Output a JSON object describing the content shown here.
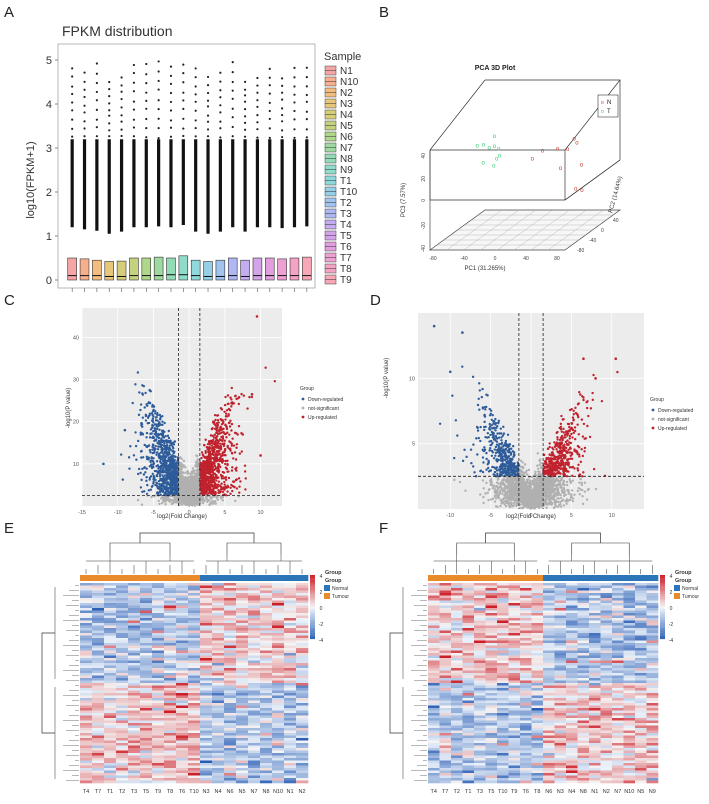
{
  "panels": {
    "A": "A",
    "B": "B",
    "C": "C",
    "D": "D",
    "E": "E",
    "F": "F"
  },
  "chart_data": [
    {
      "id": "A",
      "type": "box",
      "title": "FPKM distribution",
      "ylabel": "log10(FPKM+1)",
      "xlabel": "",
      "ylim": [
        0,
        5.4
      ],
      "yticks": [
        "0",
        "1",
        "2",
        "3",
        "4",
        "5"
      ],
      "legend_title": "Sample",
      "categories": [
        "N1",
        "N10",
        "N2",
        "N3",
        "N4",
        "N5",
        "N6",
        "N7",
        "N8",
        "N9",
        "T1",
        "T10",
        "T2",
        "T3",
        "T4",
        "T5",
        "T6",
        "T7",
        "T8",
        "T9"
      ],
      "series_colors": [
        "#f4a6a6",
        "#f6b08e",
        "#f2bd7f",
        "#e8c67a",
        "#d6cd7a",
        "#c4d27f",
        "#aed78c",
        "#9dd9a0",
        "#93dbb6",
        "#8fdccb",
        "#8fd8dc",
        "#94cfe6",
        "#a0c4ee",
        "#b0b8f1",
        "#c3acf0",
        "#d4a3ea",
        "#e39ee0",
        "#eea0d2",
        "#f4a3c3",
        "#f7a7b5"
      ],
      "medians": [
        0.1,
        0.1,
        0.1,
        0.08,
        0.08,
        0.1,
        0.1,
        0.1,
        0.12,
        0.12,
        0.1,
        0.08,
        0.08,
        0.1,
        0.08,
        0.1,
        0.1,
        0.1,
        0.1,
        0.1
      ],
      "q1": [
        0,
        0,
        0,
        0,
        0,
        0,
        0,
        0,
        0,
        0,
        0,
        0,
        0,
        0,
        0,
        0,
        0,
        0,
        0,
        0
      ],
      "q3": [
        0.5,
        0.48,
        0.45,
        0.42,
        0.43,
        0.5,
        0.5,
        0.52,
        0.5,
        0.55,
        0.45,
        0.42,
        0.45,
        0.5,
        0.45,
        0.5,
        0.5,
        0.48,
        0.5,
        0.52
      ],
      "whisker_high": [
        1.2,
        1.15,
        1.12,
        1.05,
        1.1,
        1.2,
        1.2,
        1.22,
        1.2,
        1.25,
        1.1,
        1.05,
        1.1,
        1.2,
        1.1,
        1.2,
        1.2,
        1.18,
        1.2,
        1.22
      ],
      "outlier_max": [
        4.8,
        4.7,
        4.9,
        4.5,
        4.6,
        4.9,
        4.9,
        4.95,
        4.85,
        4.9,
        4.8,
        4.6,
        4.7,
        4.95,
        4.5,
        4.6,
        4.8,
        4.6,
        4.8,
        4.8
      ]
    },
    {
      "id": "B",
      "type": "scatter3d",
      "title": "PCA 3D Plot",
      "xlabel": "PC1 (31.265%)",
      "ylabel": "PC2 (14.64%)",
      "zlabel": "PC3 (7.57%)",
      "legend": [
        "N",
        "T"
      ],
      "colors": {
        "N": "#c0392b",
        "T": "#2ecc71"
      },
      "x_ticks": [
        "-80",
        "-40",
        "0",
        "40",
        "80"
      ],
      "y_ticks": [
        "-80",
        "-40",
        "0",
        "40",
        "80"
      ],
      "z_ticks": [
        "-40",
        "-20",
        "0",
        "20",
        "40"
      ],
      "points_N": [
        [
          5,
          4,
          4
        ],
        [
          40,
          20,
          10
        ],
        [
          55,
          10,
          20
        ],
        [
          48,
          -20,
          0
        ],
        [
          60,
          -10,
          30
        ],
        [
          52,
          30,
          -10
        ],
        [
          70,
          -30,
          -20
        ],
        [
          20,
          40,
          5
        ],
        [
          35,
          -40,
          25
        ],
        [
          65,
          0,
          -30
        ]
      ],
      "points_T": [
        [
          -40,
          -10,
          20
        ],
        [
          -35,
          5,
          15
        ],
        [
          -50,
          -20,
          25
        ],
        [
          -30,
          -5,
          10
        ],
        [
          -45,
          -15,
          5
        ],
        [
          -38,
          0,
          30
        ],
        [
          -55,
          10,
          18
        ],
        [
          -25,
          -25,
          12
        ],
        [
          -42,
          8,
          -5
        ],
        [
          -33,
          -12,
          22
        ]
      ]
    },
    {
      "id": "C",
      "type": "volcano",
      "xlabel": "log2(Fold Change)",
      "ylabel": "-log10(P value)",
      "xlim": [
        -15,
        13
      ],
      "ylim": [
        0,
        47
      ],
      "xticks": [
        "-15",
        "-10",
        "-5",
        "0",
        "5",
        "10"
      ],
      "yticks": [
        "10",
        "20",
        "30",
        "40"
      ],
      "fc_cutoff": [
        -1.5,
        1.5
      ],
      "p_cutoff": 2.5,
      "legend_title": "Group",
      "legend": [
        "Down-regulated",
        "not-significant",
        "Up-regulated"
      ],
      "colors": {
        "down": "#2e5c9a",
        "ns": "#b0b0b0",
        "up": "#c0222d"
      },
      "notable_points": [
        [
          9.5,
          45
        ],
        [
          8.8,
          26.5
        ],
        [
          -9,
          18
        ],
        [
          7.5,
          17
        ],
        [
          -12,
          10
        ],
        [
          10,
          12
        ]
      ]
    },
    {
      "id": "D",
      "type": "volcano",
      "xlabel": "log2(Fold Change)",
      "ylabel": "-log10(P value)",
      "xlim": [
        -14,
        14
      ],
      "ylim": [
        0,
        15
      ],
      "xticks": [
        "-10",
        "-5",
        "0",
        "5",
        "10"
      ],
      "yticks": [
        "5",
        "10"
      ],
      "fc_cutoff": [
        -1.5,
        1.5
      ],
      "p_cutoff": 2.5,
      "legend_title": "Group",
      "legend": [
        "Down-regulated",
        "not-significant",
        "Up-regulated"
      ],
      "colors": {
        "down": "#2e5c9a",
        "ns": "#b0b0b0",
        "up": "#c0222d"
      },
      "notable_points": [
        [
          -12,
          14
        ],
        [
          -8.5,
          13.5
        ],
        [
          -10,
          10.5
        ],
        [
          6.5,
          11.5
        ],
        [
          8,
          10
        ],
        [
          10.5,
          11.5
        ]
      ]
    },
    {
      "id": "E",
      "type": "heatmap",
      "columns": [
        "T4",
        "T7",
        "T1",
        "T2",
        "T3",
        "T5",
        "T9",
        "T8",
        "T6",
        "T10",
        "N3",
        "N4",
        "N6",
        "N5",
        "N7",
        "N8",
        "N10",
        "N1",
        "N2"
      ],
      "groups": [
        "Tumour",
        "Tumour",
        "Tumour",
        "Tumour",
        "Tumour",
        "Tumour",
        "Tumour",
        "Tumour",
        "Tumour",
        "Tumour",
        "Normal",
        "Normal",
        "Normal",
        "Normal",
        "Normal",
        "Normal",
        "Normal",
        "Normal",
        "Normal"
      ],
      "legend_title": "Group",
      "group_labels": [
        "Normal",
        "Tumour"
      ],
      "group_colors": {
        "Normal": "#2c75b8",
        "Tumour": "#e98a2b"
      },
      "scale_ticks": [
        "4",
        "2",
        "0",
        "-2",
        "-4"
      ]
    },
    {
      "id": "F",
      "type": "heatmap",
      "columns": [
        "T4",
        "T7",
        "T2",
        "T1",
        "T3",
        "T5",
        "T10",
        "T9",
        "T6",
        "T8",
        "N6",
        "N3",
        "N4",
        "N8",
        "N1",
        "N2",
        "N7",
        "N10",
        "N5",
        "N9"
      ],
      "groups": [
        "Tumour",
        "Tumour",
        "Tumour",
        "Tumour",
        "Tumour",
        "Tumour",
        "Tumour",
        "Tumour",
        "Tumour",
        "Tumour",
        "Normal",
        "Normal",
        "Normal",
        "Normal",
        "Normal",
        "Normal",
        "Normal",
        "Normal",
        "Normal",
        "Normal"
      ],
      "legend_title": "Group",
      "group_labels": [
        "Normal",
        "Tumour"
      ],
      "group_colors": {
        "Normal": "#2c75b8",
        "Tumour": "#e98a2b"
      },
      "scale_ticks": [
        "4",
        "2",
        "0",
        "-2",
        "-4"
      ]
    }
  ]
}
